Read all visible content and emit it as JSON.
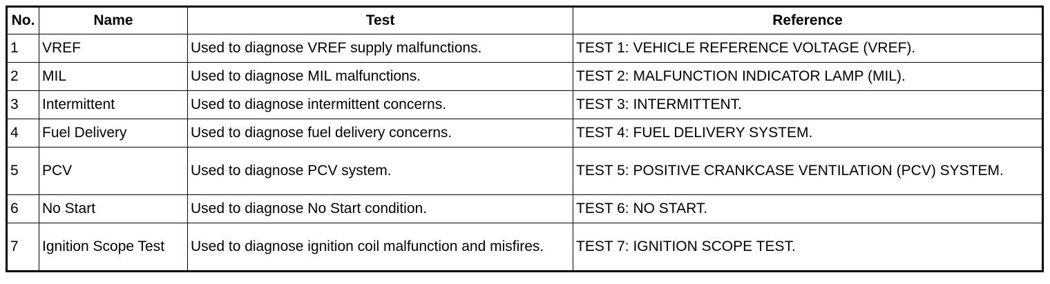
{
  "table": {
    "header": [
      "No.",
      "Name",
      "Test",
      "Reference"
    ],
    "rows": [
      [
        "1",
        "VREF",
        "Used to diagnose VREF supply malfunctions.",
        "TEST 1: VEHICLE REFERENCE VOLTAGE (VREF)."
      ],
      [
        "2",
        "MIL",
        "Used to diagnose MIL malfunctions.",
        "TEST 2: MALFUNCTION INDICATOR LAMP (MIL)."
      ],
      [
        "3",
        "Intermittent",
        "Used to diagnose intermittent concerns.",
        "TEST 3: INTERMITTENT."
      ],
      [
        "4",
        "Fuel Delivery",
        "Used to diagnose fuel delivery concerns.",
        "TEST 4: FUEL DELIVERY SYSTEM."
      ],
      [
        "5",
        "PCV",
        "Used to diagnose PCV system.",
        "TEST 5: POSITIVE CRANKCASE VENTILATION (PCV) SYSTEM."
      ],
      [
        "6",
        "No Start",
        "Used to diagnose No Start condition.",
        "TEST 6: NO START."
      ],
      [
        "7",
        "Ignition Scope Test",
        "Used to diagnose ignition coil malfunction and misfires.",
        "TEST 7: IGNITION SCOPE TEST."
      ]
    ]
  }
}
